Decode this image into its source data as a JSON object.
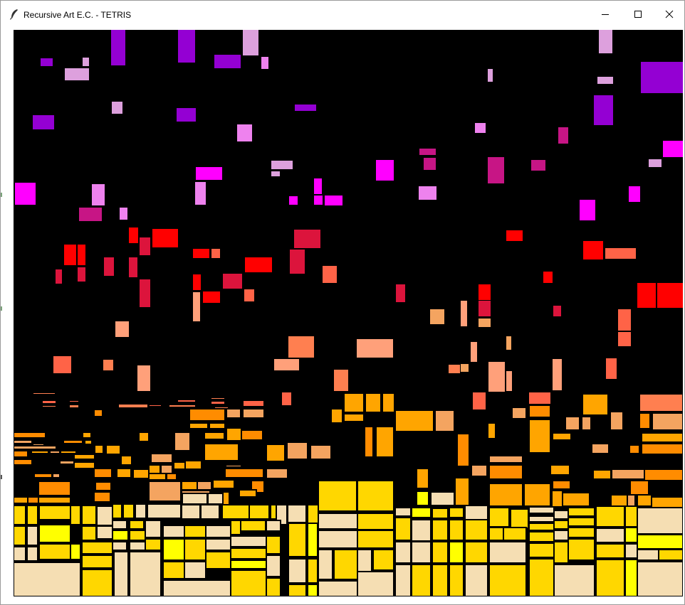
{
  "window": {
    "title": "Recursive Art E.C. - TETRIS",
    "controls": {
      "minimize_icon": "minimize-icon",
      "maximize_icon": "maximize-icon",
      "close_icon": "close-icon"
    },
    "app_icon": "feather-icon"
  },
  "canvas": {
    "background": "#000000",
    "palette": {
      "violet": "#9400D3",
      "orchid": "#DDA0DD",
      "plum": "#EE82EE",
      "magenta": "#FF00FF",
      "medium_violet_red": "#C71585",
      "red": "#FF0000",
      "crimson": "#DC143C",
      "tomato": "#FF6347",
      "coral": "#FF7F50",
      "light_salmon": "#FFA07A",
      "sandy_brown": "#F4A460",
      "dark_orange": "#FF8C00",
      "orange": "#FFA500",
      "gold": "#FFD700",
      "yellow": "#FFFF00",
      "wheat": "#F5DEB3"
    }
  }
}
